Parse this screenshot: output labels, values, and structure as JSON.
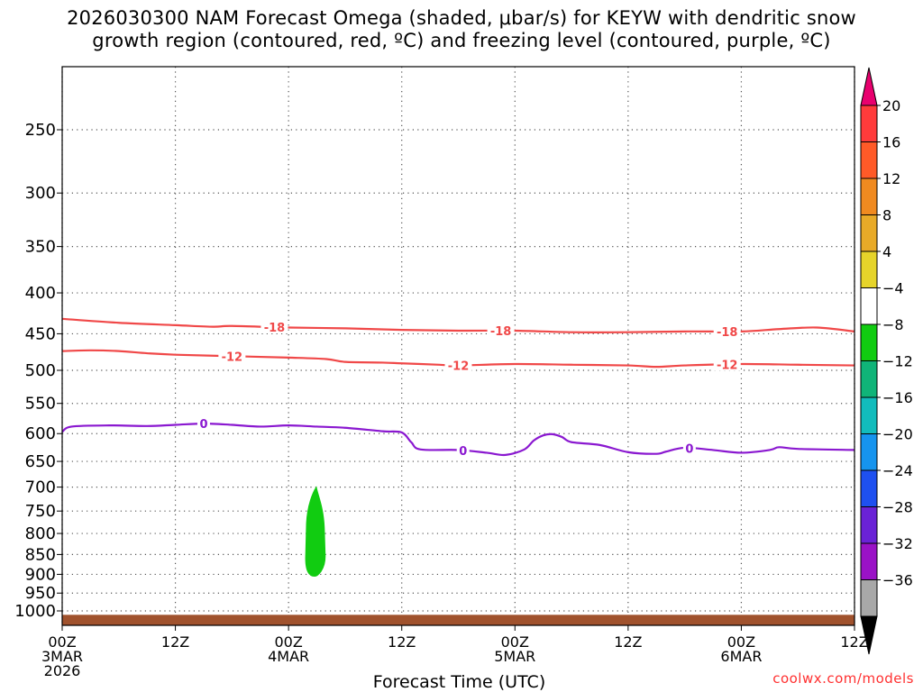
{
  "title": {
    "line1": "2026030300 NAM Forecast Omega (shaded, μbar/s) for KEYW with dendritic snow",
    "line2": "growth region (contoured, red, ºC) and freezing level (contoured, purple, ºC)"
  },
  "credit": "coolwx.com/models",
  "chart_data": {
    "type": "time-height cross section",
    "xlabel": "Forecast Time (UTC)",
    "ylabel": "",
    "x_unit": "hours since 2026-03-03 00Z",
    "xlim": [
      0,
      84
    ],
    "ylim_hpa": [
      1020,
      200
    ],
    "x_ticks": [
      {
        "hour": 0,
        "labels": [
          "00Z",
          "3MAR",
          "2026"
        ]
      },
      {
        "hour": 12,
        "labels": [
          "12Z"
        ]
      },
      {
        "hour": 24,
        "labels": [
          "00Z",
          "4MAR"
        ]
      },
      {
        "hour": 36,
        "labels": [
          "12Z"
        ]
      },
      {
        "hour": 48,
        "labels": [
          "00Z",
          "5MAR"
        ]
      },
      {
        "hour": 60,
        "labels": [
          "12Z"
        ]
      },
      {
        "hour": 72,
        "labels": [
          "00Z",
          "6MAR"
        ]
      },
      {
        "hour": 84,
        "labels": [
          "12Z"
        ]
      }
    ],
    "y_ticks": [
      250,
      300,
      350,
      400,
      450,
      500,
      550,
      600,
      650,
      700,
      750,
      800,
      850,
      900,
      950,
      1000
    ],
    "colorbar": {
      "labels": [
        "20",
        "16",
        "12",
        "8",
        "4",
        "−4",
        "−8",
        "−12",
        "−16",
        "−20",
        "−24",
        "−28",
        "−32",
        "−36"
      ],
      "colors": [
        "#e8006e",
        "#ff3b3b",
        "#ff5a28",
        "#f08a20",
        "#e8aa28",
        "#e6d42a",
        "#ffffff",
        "#11cc11",
        "#10b478",
        "#12bcbc",
        "#1694ee",
        "#1e50f0",
        "#6a22d6",
        "#9a12c6",
        "#a8a8a8",
        "#000000"
      ]
    },
    "contours": [
      {
        "name": "dgz-top",
        "label": "-18",
        "color": "#f04848",
        "label_hours": [
          22.5,
          46.5,
          70.5
        ],
        "points": [
          [
            0,
            431
          ],
          [
            6,
            436
          ],
          [
            12,
            439
          ],
          [
            16,
            441
          ],
          [
            18,
            440
          ],
          [
            24,
            442
          ],
          [
            30,
            443
          ],
          [
            36,
            445
          ],
          [
            42,
            446
          ],
          [
            48,
            446
          ],
          [
            54,
            448
          ],
          [
            60,
            448
          ],
          [
            66,
            447
          ],
          [
            72,
            447
          ],
          [
            76,
            444
          ],
          [
            80,
            442
          ],
          [
            84,
            447
          ]
        ]
      },
      {
        "name": "dgz-bottom",
        "label": "-12",
        "color": "#f04848",
        "label_hours": [
          18,
          42,
          70.5
        ],
        "points": [
          [
            0,
            473
          ],
          [
            3,
            472
          ],
          [
            6,
            473
          ],
          [
            9,
            476
          ],
          [
            12,
            478
          ],
          [
            18,
            480
          ],
          [
            24,
            482
          ],
          [
            28,
            484
          ],
          [
            30,
            488
          ],
          [
            34,
            489
          ],
          [
            36,
            490
          ],
          [
            40,
            492
          ],
          [
            42,
            493
          ],
          [
            48,
            491
          ],
          [
            54,
            492
          ],
          [
            60,
            493
          ],
          [
            63,
            495
          ],
          [
            66,
            493
          ],
          [
            72,
            491
          ],
          [
            78,
            492
          ],
          [
            84,
            493
          ]
        ]
      },
      {
        "name": "freezing-level",
        "label": "0",
        "color": "#8a18d0",
        "label_hours": [
          15,
          42.5,
          66.5
        ],
        "points": [
          [
            0,
            597
          ],
          [
            1,
            588
          ],
          [
            5,
            586
          ],
          [
            9,
            587
          ],
          [
            12,
            585
          ],
          [
            15,
            583
          ],
          [
            18,
            585
          ],
          [
            21,
            588
          ],
          [
            24,
            586
          ],
          [
            27,
            588
          ],
          [
            30,
            590
          ],
          [
            34,
            596
          ],
          [
            36,
            598
          ],
          [
            37,
            615
          ],
          [
            38,
            628
          ],
          [
            42,
            629
          ],
          [
            45,
            634
          ],
          [
            47,
            638
          ],
          [
            49,
            628
          ],
          [
            50,
            612
          ],
          [
            51,
            603
          ],
          [
            52,
            601
          ],
          [
            53,
            606
          ],
          [
            54,
            615
          ],
          [
            57,
            620
          ],
          [
            60,
            633
          ],
          [
            63,
            636
          ],
          [
            64,
            632
          ],
          [
            66,
            625
          ],
          [
            69,
            629
          ],
          [
            72,
            634
          ],
          [
            75,
            629
          ],
          [
            76,
            624
          ],
          [
            78,
            627
          ],
          [
            84,
            629
          ]
        ]
      }
    ],
    "omega_shaded": [
      {
        "band": "-8 to -4",
        "color": "#11cc11",
        "hour_range": [
          26,
          27.5
        ],
        "pressure_range_hpa": [
          700,
          905
        ]
      }
    ],
    "ground": {
      "color": "#a0522d",
      "pressure_hpa": 1010
    }
  }
}
